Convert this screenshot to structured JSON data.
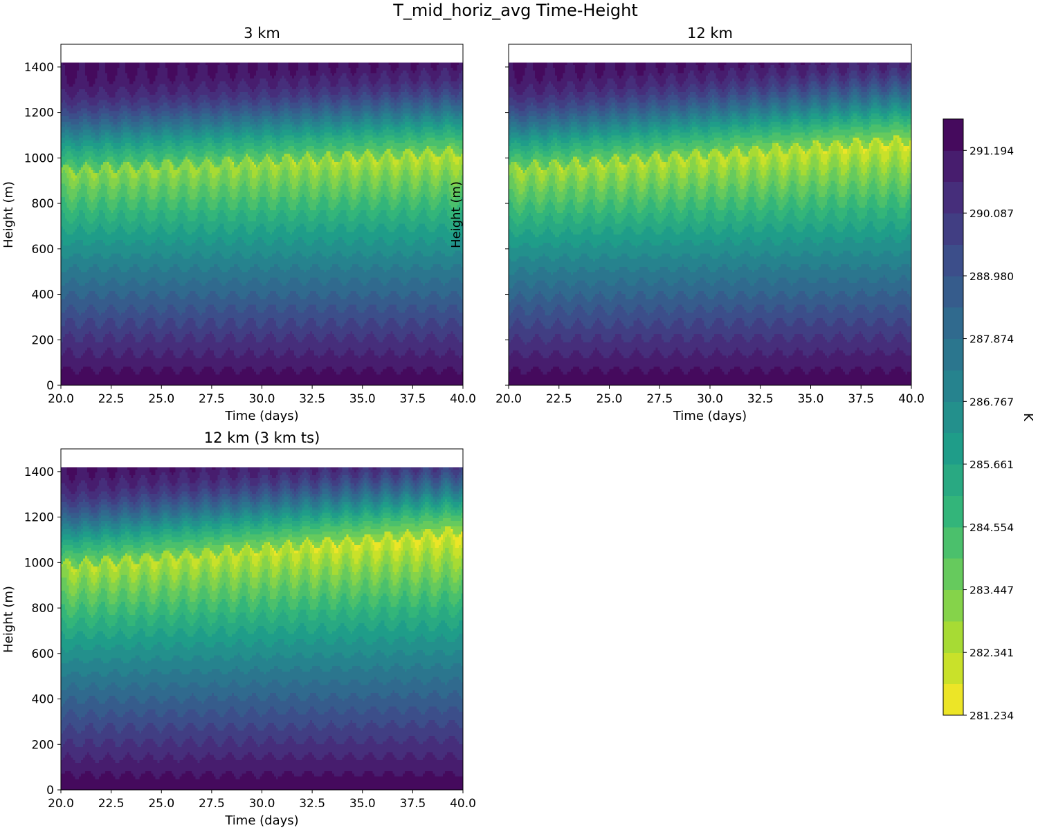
{
  "figure": {
    "title": "T_mid_horiz_avg Time-Height"
  },
  "chart_data": [
    {
      "type": "heatmap",
      "title": "3 km",
      "xlabel": "Time (days)",
      "ylabel": "Height (m)",
      "xlim": [
        20.0,
        40.0
      ],
      "ylim": [
        0,
        1500
      ],
      "xticks": [
        "20.0",
        "22.5",
        "25.0",
        "27.5",
        "30.0",
        "32.5",
        "35.0",
        "37.5",
        "40.0"
      ],
      "yticks": [
        "0",
        "200",
        "400",
        "600",
        "800",
        "1000",
        "1200",
        "1400"
      ],
      "show_ytick_labels": true,
      "data_top_height": 1420,
      "cool_core_height_start": 950,
      "cool_core_height_end": 1030,
      "cool_core_min_temperature_start": 282.9,
      "cool_core_min_temperature_end": 282.2
    },
    {
      "type": "heatmap",
      "title": "12 km",
      "xlabel": "Time (days)",
      "ylabel": "Height (m)",
      "xlim": [
        20.0,
        40.0
      ],
      "ylim": [
        0,
        1500
      ],
      "xticks": [
        "20.0",
        "22.5",
        "25.0",
        "27.5",
        "30.0",
        "32.5",
        "35.0",
        "37.5",
        "40.0"
      ],
      "yticks": [
        "0",
        "200",
        "400",
        "600",
        "800",
        "1000",
        "1200",
        "1400"
      ],
      "show_ytick_labels": false,
      "data_top_height": 1420,
      "cool_core_height_start": 960,
      "cool_core_height_end": 1080,
      "cool_core_min_temperature_start": 282.6,
      "cool_core_min_temperature_end": 281.8
    },
    {
      "type": "heatmap",
      "title": "12 km (3 km ts)",
      "xlabel": "Time (days)",
      "ylabel": "Height (m)",
      "xlim": [
        20.0,
        40.0
      ],
      "ylim": [
        0,
        1500
      ],
      "xticks": [
        "20.0",
        "22.5",
        "25.0",
        "27.5",
        "30.0",
        "32.5",
        "35.0",
        "37.5",
        "40.0"
      ],
      "yticks": [
        "0",
        "200",
        "400",
        "600",
        "800",
        "1000",
        "1200",
        "1400"
      ],
      "show_ytick_labels": true,
      "data_top_height": 1420,
      "cool_core_height_start": 990,
      "cool_core_height_end": 1140,
      "cool_core_min_temperature_start": 282.4,
      "cool_core_min_temperature_end": 281.6
    }
  ],
  "colorbar": {
    "label": "K",
    "min": 281.234,
    "max": 291.747,
    "levels": 19,
    "colormap": "viridis_r",
    "tick_values": [
      281.234,
      282.341,
      283.447,
      284.554,
      285.661,
      286.767,
      287.874,
      288.98,
      290.087,
      291.194
    ],
    "tick_labels": [
      "281.234",
      "282.341",
      "283.447",
      "284.554",
      "285.661",
      "286.767",
      "287.874",
      "288.980",
      "290.087",
      "291.194"
    ]
  },
  "field": {
    "surface_temperature": 291.6,
    "top_temperature": 291.6,
    "diurnal_period_days": 1.0
  }
}
